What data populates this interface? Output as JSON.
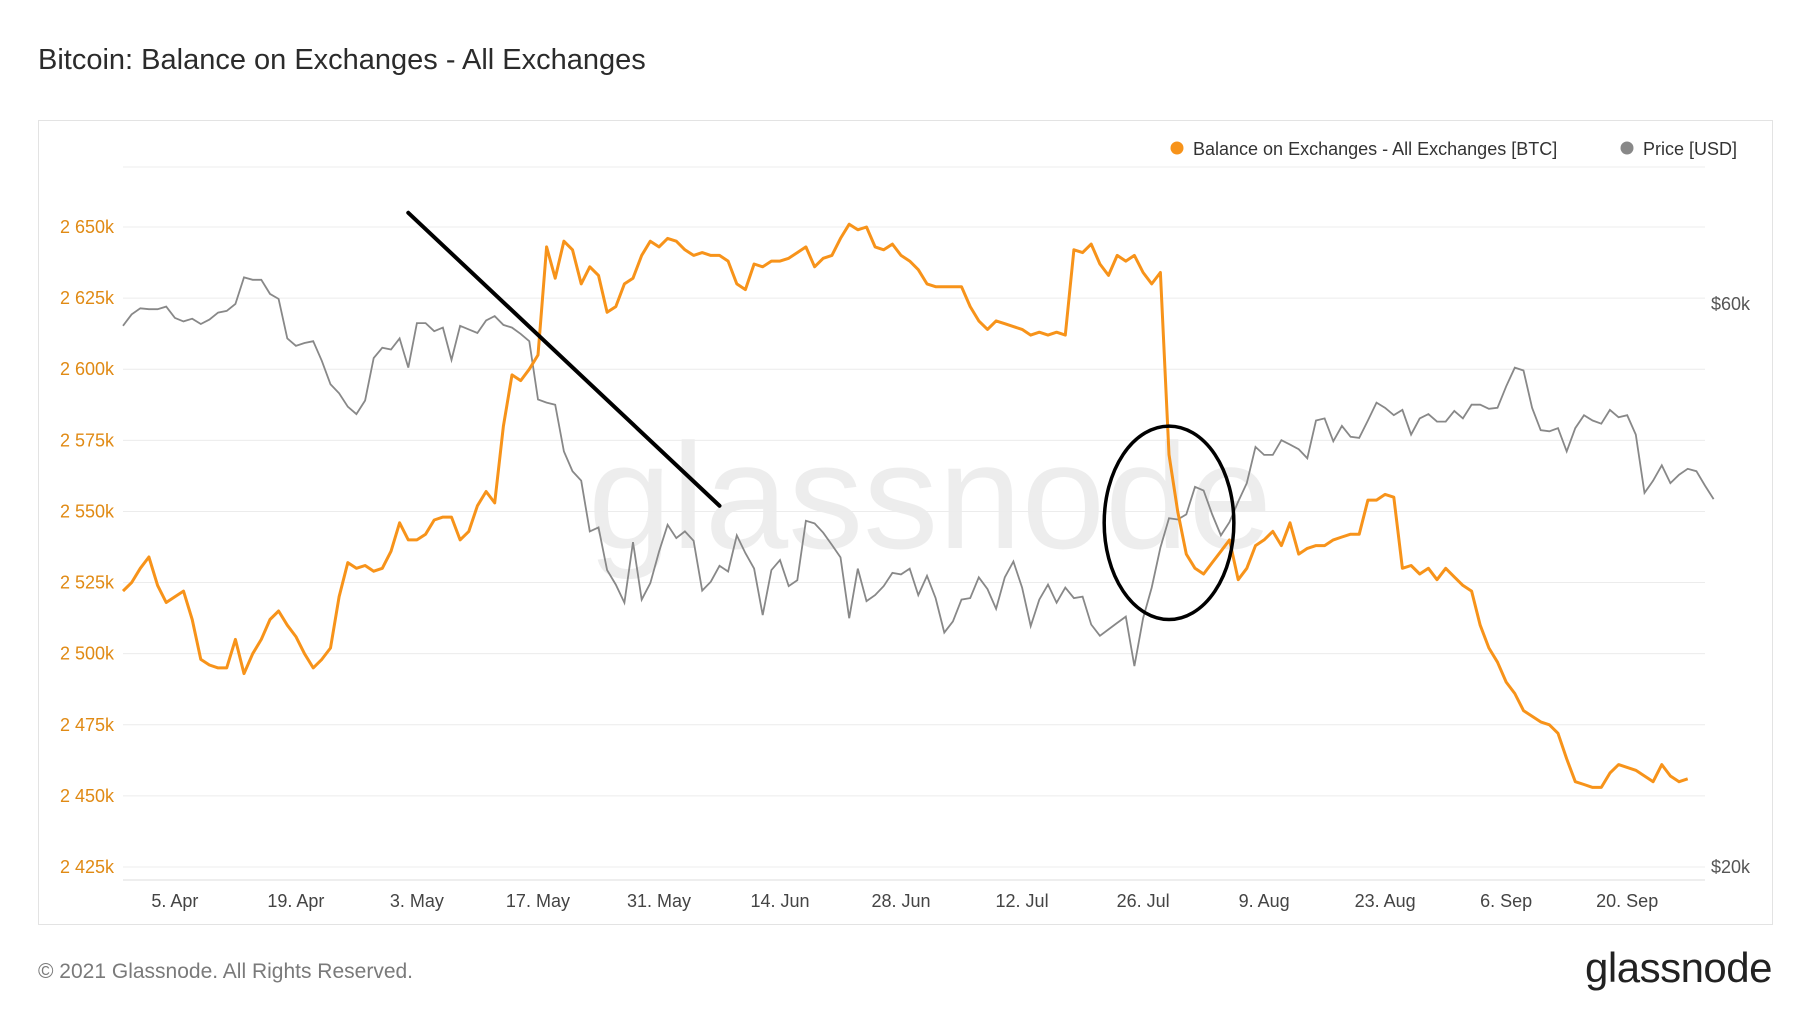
{
  "title": "Bitcoin: Balance on Exchanges - All Exchanges",
  "footer": {
    "copyright": "© 2021 Glassnode. All Rights Reserved.",
    "brand": "glassnode"
  },
  "watermark": "glassnode",
  "colors": {
    "balance": "#f7931a",
    "price": "#888888",
    "axisLeft": "#e08a14",
    "grid": "#ececec",
    "annotation": "#000000"
  },
  "chart_data": {
    "type": "line",
    "title": "Bitcoin: Balance on Exchanges - All Exchanges",
    "legend_position": "top-right",
    "grid": true,
    "x_ticks": [
      "5. Apr",
      "19. Apr",
      "3. May",
      "17. May",
      "31. May",
      "14. Jun",
      "28. Jun",
      "12. Jul",
      "26. Jul",
      "9. Aug",
      "23. Aug",
      "6. Sep",
      "20. Sep"
    ],
    "x_range": [
      "2021-03-30",
      "2021-09-29"
    ],
    "y_left": {
      "ticks": [
        "2 425k",
        "2 450k",
        "2 475k",
        "2 500k",
        "2 525k",
        "2 550k",
        "2 575k",
        "2 600k",
        "2 625k",
        "2 650k"
      ],
      "ylim": [
        2425000,
        2650000
      ]
    },
    "y_right": {
      "ticks": [
        "$20k",
        "$60k"
      ],
      "scale": "log"
    },
    "series": [
      {
        "name": "Balance on Exchanges - All Exchanges [BTC]",
        "axis": "left",
        "start": "2021-03-30",
        "step_days": 1,
        "values": [
          2522000,
          2525000,
          2530000,
          2534000,
          2524000,
          2518000,
          2520000,
          2522000,
          2512000,
          2498000,
          2496000,
          2495000,
          2495000,
          2505000,
          2493000,
          2500000,
          2505000,
          2512000,
          2515000,
          2510000,
          2506000,
          2500000,
          2495000,
          2498000,
          2502000,
          2520000,
          2532000,
          2530000,
          2531000,
          2529000,
          2530000,
          2536000,
          2546000,
          2540000,
          2540000,
          2542000,
          2547000,
          2548000,
          2548000,
          2540000,
          2543000,
          2552000,
          2557000,
          2553000,
          2580000,
          2598000,
          2596000,
          2600000,
          2605000,
          2643000,
          2632000,
          2645000,
          2642000,
          2630000,
          2636000,
          2633000,
          2620000,
          2622000,
          2630000,
          2632000,
          2640000,
          2645000,
          2643000,
          2646000,
          2645000,
          2642000,
          2640000,
          2641000,
          2640000,
          2640000,
          2638000,
          2630000,
          2628000,
          2637000,
          2636000,
          2638000,
          2638000,
          2639000,
          2641000,
          2643000,
          2636000,
          2639000,
          2640000,
          2646000,
          2651000,
          2649000,
          2650000,
          2643000,
          2642000,
          2644000,
          2640000,
          2638000,
          2635000,
          2630000,
          2629000,
          2629000,
          2629000,
          2629000,
          2622000,
          2617000,
          2614000,
          2617000,
          2616000,
          2615000,
          2614000,
          2612000,
          2613000,
          2612000,
          2613000,
          2612000,
          2642000,
          2641000,
          2644000,
          2637000,
          2633000,
          2640000,
          2638000,
          2640000,
          2634000,
          2630000,
          2634000,
          2570000,
          2550000,
          2535000,
          2530000,
          2528000,
          2532000,
          2536000,
          2540000,
          2526000,
          2530000,
          2538000,
          2540000,
          2543000,
          2538000,
          2546000,
          2535000,
          2537000,
          2538000,
          2538000,
          2540000,
          2541000,
          2542000,
          2542000,
          2554000,
          2554000,
          2556000,
          2555000,
          2530000,
          2531000,
          2528000,
          2530000,
          2526000,
          2530000,
          2527000,
          2524000,
          2522000,
          2510000,
          2502000,
          2497000,
          2490000,
          2486000,
          2480000,
          2478000,
          2476000,
          2475000,
          2472000,
          2463000,
          2455000,
          2454000,
          2453000,
          2453000,
          2458000,
          2461000,
          2460000,
          2459000,
          2457000,
          2455000,
          2461000,
          2457000,
          2455000,
          2456000
        ]
      },
      {
        "name": "Price [USD]",
        "axis": "right",
        "start": "2021-03-30",
        "step_days": 1,
        "values": [
          57500,
          58800,
          59500,
          59400,
          59400,
          59700,
          58400,
          58000,
          58300,
          57700,
          58200,
          59000,
          59200,
          60000,
          63200,
          62900,
          62900,
          61200,
          60600,
          56100,
          55300,
          55600,
          55800,
          53700,
          51300,
          50400,
          49100,
          48400,
          49700,
          54000,
          55100,
          54900,
          56100,
          53000,
          57800,
          57800,
          56900,
          57300,
          53800,
          57500,
          57100,
          56700,
          58100,
          58600,
          57600,
          57300,
          56600,
          55800,
          49800,
          49500,
          49300,
          45000,
          43300,
          42500,
          38500,
          38800,
          35700,
          34700,
          33500,
          37700,
          33700,
          34800,
          37000,
          39000,
          38000,
          38500,
          37800,
          34300,
          34900,
          36000,
          35600,
          38200,
          36900,
          35800,
          32700,
          35700,
          36400,
          34600,
          35000,
          39300,
          39100,
          38400,
          37500,
          36600,
          32500,
          35800,
          33600,
          34000,
          34600,
          35500,
          35400,
          35800,
          34000,
          35300,
          33800,
          31600,
          32300,
          33700,
          33800,
          35200,
          34400,
          33100,
          35200,
          36300,
          34500,
          32000,
          33700,
          34700,
          33500,
          34500,
          33800,
          33900,
          32100,
          31400,
          31800,
          32200,
          32600,
          29600,
          32500,
          34500,
          37300,
          39500,
          39400,
          39800,
          42000,
          41700,
          39800,
          38200,
          39200,
          40800,
          42300,
          45400,
          44700,
          44700,
          46000,
          45600,
          45200,
          44400,
          47800,
          48000,
          45900,
          47300,
          46300,
          46200,
          47800,
          49500,
          49000,
          48300,
          48800,
          46500,
          48000,
          48400,
          47700,
          47700,
          48700,
          48000,
          49300,
          49300,
          48900,
          49000,
          51100,
          53000,
          52700,
          49000,
          46900,
          46800,
          47100,
          45000,
          47100,
          48300,
          47800,
          47500,
          48800,
          48100,
          48300,
          46500,
          41500,
          42500,
          43800,
          42300,
          43000,
          43500,
          43300,
          42100,
          41000
        ]
      }
    ],
    "annotations": [
      {
        "type": "line",
        "from": [
          "2021-05-02",
          2655000
        ],
        "to": [
          "2021-06-07",
          2552000
        ]
      },
      {
        "type": "ellipse",
        "center": [
          "2021-07-29",
          2546000
        ],
        "rx_days": 7.5,
        "ry_value": 34000
      }
    ]
  }
}
